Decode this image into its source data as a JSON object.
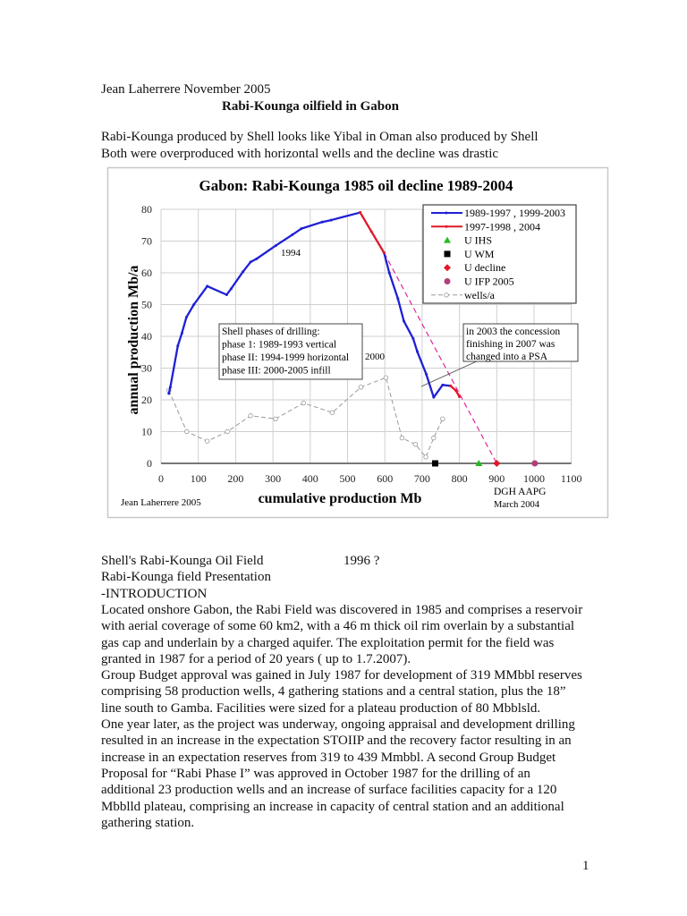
{
  "header": {
    "author_date": "Jean Laherrere November 2005",
    "title": "Rabi-Kounga oilfield in Gabon",
    "intro_lines": [
      "Rabi-Kounga produced by Shell looks like Yibal in Oman also produced by Shell",
      "Both were overproduced with horizontal wells and the decline was drastic"
    ]
  },
  "chart_data": {
    "type": "line",
    "title": "Gabon: Rabi-Kounga 1985 oil decline 1989-2004",
    "xlabel": "cumulative production Mb",
    "ylabel": "annual production Mb/a",
    "xlim": [
      0,
      1100
    ],
    "ylim": [
      0,
      80
    ],
    "xticks": [
      "0",
      "100",
      "200",
      "300",
      "400",
      "500",
      "600",
      "700",
      "800",
      "900",
      "1000",
      "1100"
    ],
    "yticks": [
      "0",
      "10",
      "20",
      "30",
      "40",
      "50",
      "60",
      "70",
      "80"
    ],
    "grid": true,
    "legend_position": "top-right",
    "series": [
      {
        "name": "1989-1997 , 1999-2003",
        "color": "#1f1fd6",
        "style": "solid",
        "segments": [
          [
            [
              21,
              22
            ],
            [
              25,
              24
            ],
            [
              45,
              37
            ],
            [
              56,
              41
            ],
            [
              68,
              46
            ],
            [
              88,
              50
            ],
            [
              124,
              55.8
            ],
            [
              176,
              53.1
            ],
            [
              188,
              55
            ],
            [
              220,
              60.4
            ],
            [
              240,
              63.4
            ],
            [
              256,
              64.4
            ],
            [
              308,
              68.6
            ],
            [
              352,
              72
            ],
            [
              376,
              73.9
            ],
            [
              432,
              76
            ],
            [
              456,
              76.6
            ],
            [
              534,
              79
            ]
          ],
          [
            [
              598,
              66.3
            ],
            [
              612,
              60
            ],
            [
              635,
              51.9
            ],
            [
              651,
              44.8
            ],
            [
              676,
              39.3
            ],
            [
              687,
              35.2
            ],
            [
              711,
              28.1
            ],
            [
              731,
              20.8
            ],
            [
              755,
              24.7
            ],
            [
              776,
              24.4
            ]
          ]
        ]
      },
      {
        "name": "1997-1998 , 2004",
        "color": "#e0182a",
        "style": "solid",
        "segments": [
          [
            [
              534,
              79
            ],
            [
              564,
              73
            ],
            [
              598,
              66.3
            ]
          ],
          [
            [
              776,
              24.4
            ],
            [
              790,
              23
            ],
            [
              800,
              21
            ]
          ]
        ]
      },
      {
        "name": "U IHS",
        "color": "#22bb22",
        "marker": "triangle",
        "points": [
          [
            852,
            0
          ]
        ]
      },
      {
        "name": "U WM",
        "color": "#000000",
        "marker": "square",
        "points": [
          [
            735,
            0
          ]
        ]
      },
      {
        "name": "U decline",
        "color": "#e0182a",
        "marker": "diamond",
        "points": [
          [
            900,
            0
          ]
        ]
      },
      {
        "name": "U IFP 2005",
        "color": "#b0407a",
        "marker": "circle",
        "points": [
          [
            1002,
            0
          ]
        ]
      },
      {
        "name": "wells/a",
        "color": "#999999",
        "style": "dashed",
        "marker": "open-circle",
        "points": [
          [
            21,
            23
          ],
          [
            69,
            10
          ],
          [
            124,
            7
          ],
          [
            178,
            10
          ],
          [
            240,
            15
          ],
          [
            307,
            14
          ],
          [
            382,
            19
          ],
          [
            459,
            16
          ],
          [
            536,
            24
          ],
          [
            603,
            27
          ],
          [
            646,
            8
          ],
          [
            682,
            6
          ],
          [
            710,
            2
          ],
          [
            731,
            8
          ],
          [
            755,
            14
          ]
        ]
      }
    ],
    "decline_line": {
      "color": "#e0289a",
      "style": "dashed",
      "points": [
        [
          598,
          66.3
        ],
        [
          900,
          0
        ]
      ]
    },
    "annotations": {
      "year_1994": "1994",
      "year_2000": "2000",
      "phases_box": [
        "Shell phases of drilling:",
        "phase 1: 1989-1993 vertical",
        "phase II: 1994-1999 horizontal",
        "phase III: 2000-2005 infill"
      ],
      "concession_box": [
        "in 2003 the concession",
        "finishing in 2007 was",
        "changed into a PSA"
      ],
      "credit": "Jean Laherrere 2005",
      "source": [
        "DGH AAPG",
        "March 2004"
      ]
    }
  },
  "body": {
    "lines": [
      {
        "text": "Shell's Rabi-Kounga Oil Field",
        "extra": "1996 ?"
      },
      {
        "text": "Rabi-Kounga field Presentation"
      },
      {
        "text": "-INTRODUCTION"
      },
      {
        "text": "Located onshore Gabon, the Rabi Field was discovered in 1985 and comprises a reservoir"
      },
      {
        "text": "with aerial coverage of some 60 km2, with a 46 m thick oil rim overlain by a substantial"
      },
      {
        "text": "gas cap and underlain by a charged aquifer. The exploitation permit for the field was"
      },
      {
        "text": "granted in 1987 for a period of 20 years ( up to 1.7.2007)."
      },
      {
        "text": "Group Budget approval was gained in July 1987 for development of 319 MMbbl reserves"
      },
      {
        "text": "comprising 58 production wells, 4 gathering stations and a central station, plus the 18”"
      },
      {
        "text": "line south to Gamba. Facilities were sized for a plateau production of 80 Mbblsld."
      },
      {
        "text": "One year later, as the project was underway, ongoing appraisal and development drilling"
      },
      {
        "text": "resulted in an increase in the expectation STOIIP and the recovery factor resulting in an"
      },
      {
        "text": "increase in an expectation reserves from 319 to 439 Mmbbl. A second Group Budget"
      },
      {
        "text": "Proposal for “Rabi Phase I” was approved in October 1987 for the drilling of an"
      },
      {
        "text": "additional 23 production wells and an increase of surface facilities capacity for a 120"
      },
      {
        "text": "Mbblld plateau, comprising an increase in capacity of central station and an additional"
      },
      {
        "text": "gathering station."
      }
    ]
  },
  "footer": {
    "page_number": "1"
  }
}
